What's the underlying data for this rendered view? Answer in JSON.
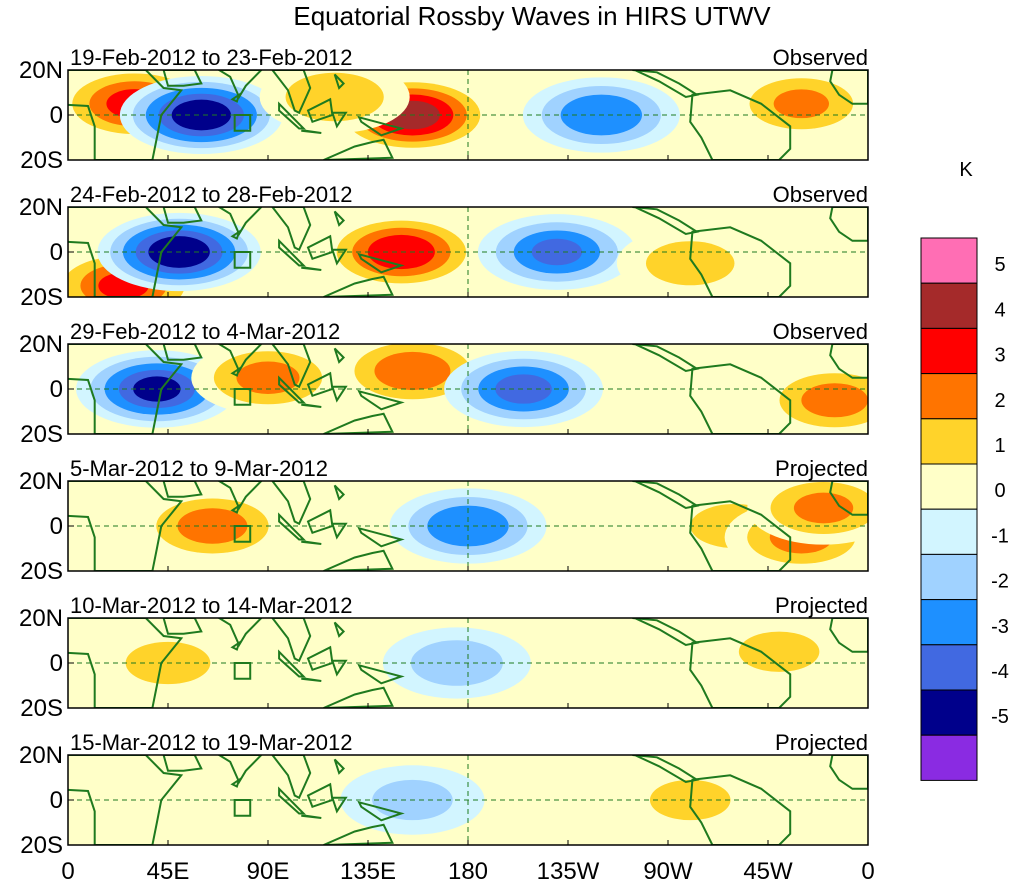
{
  "chart_data": {
    "type": "heatmap",
    "title": "Equatorial Rossby Waves in HIRS UTWV",
    "units": "K",
    "x_tick_labels": [
      "0",
      "45E",
      "90E",
      "135E",
      "180",
      "135W",
      "90W",
      "45W",
      "0"
    ],
    "y_tick_labels": [
      "20N",
      "0",
      "20S"
    ],
    "x_range_deg": [
      0,
      360
    ],
    "y_range_deg": [
      -20,
      20
    ],
    "colorbar": {
      "labels": [
        "5",
        "4",
        "3",
        "2",
        "1",
        "0",
        "-1",
        "-2",
        "-3",
        "-4",
        "-5"
      ],
      "colors": [
        "#ff6eb4",
        "#a52a2a",
        "#ff0000",
        "#ff7400",
        "#ffd32a",
        "#ffffc8",
        "#d2f5ff",
        "#a0d2ff",
        "#1e90ff",
        "#4169e1",
        "#00008b",
        "#8a2be2"
      ]
    },
    "reference_box": {
      "lon": [
        75,
        80
      ],
      "lat": [
        -5,
        0
      ]
    },
    "panels": [
      {
        "date_range": "19-Feb-2012 to 23-Feb-2012",
        "status": "Observed",
        "anomalies": [
          {
            "lon": 30,
            "lat": 5,
            "value": 3.2
          },
          {
            "lon": 60,
            "lat": 0,
            "value": -4.5
          },
          {
            "lon": 155,
            "lat": 0,
            "value": 4.3
          },
          {
            "lon": 120,
            "lat": 8,
            "value": 1.8
          },
          {
            "lon": 240,
            "lat": 0,
            "value": -2.8
          },
          {
            "lon": 330,
            "lat": 5,
            "value": 2.0
          }
        ]
      },
      {
        "date_range": "24-Feb-2012 to 28-Feb-2012",
        "status": "Observed",
        "anomalies": [
          {
            "lon": 25,
            "lat": -15,
            "value": 3.0
          },
          {
            "lon": 50,
            "lat": 0,
            "value": -4.6
          },
          {
            "lon": 150,
            "lat": 0,
            "value": 3.6
          },
          {
            "lon": 220,
            "lat": 0,
            "value": -3.0
          },
          {
            "lon": 280,
            "lat": -5,
            "value": 1.5
          }
        ]
      },
      {
        "date_range": "29-Feb-2012 to 4-Mar-2012",
        "status": "Observed",
        "anomalies": [
          {
            "lon": 40,
            "lat": 0,
            "value": -4.0
          },
          {
            "lon": 90,
            "lat": 5,
            "value": 2.2
          },
          {
            "lon": 155,
            "lat": 8,
            "value": 2.6
          },
          {
            "lon": 205,
            "lat": 0,
            "value": -3.2
          },
          {
            "lon": 345,
            "lat": -5,
            "value": 2.3
          }
        ]
      },
      {
        "date_range": "5-Mar-2012 to 9-Mar-2012",
        "status": "Projected",
        "anomalies": [
          {
            "lon": 65,
            "lat": 0,
            "value": 2.4
          },
          {
            "lon": 180,
            "lat": 0,
            "value": -2.8
          },
          {
            "lon": 300,
            "lat": 0,
            "value": 1.5
          },
          {
            "lon": 330,
            "lat": -5,
            "value": 2.2
          },
          {
            "lon": 340,
            "lat": 8,
            "value": 2.1
          }
        ]
      },
      {
        "date_range": "10-Mar-2012 to 14-Mar-2012",
        "status": "Projected",
        "anomalies": [
          {
            "lon": 45,
            "lat": 0,
            "value": 1.4
          },
          {
            "lon": 175,
            "lat": 0,
            "value": -1.6
          },
          {
            "lon": 320,
            "lat": 5,
            "value": 1.3
          }
        ]
      },
      {
        "date_range": "15-Mar-2012 to 19-Mar-2012",
        "status": "Projected",
        "anomalies": [
          {
            "lon": 155,
            "lat": 0,
            "value": -1.3
          },
          {
            "lon": 280,
            "lat": 0,
            "value": 1.3
          }
        ]
      }
    ]
  }
}
